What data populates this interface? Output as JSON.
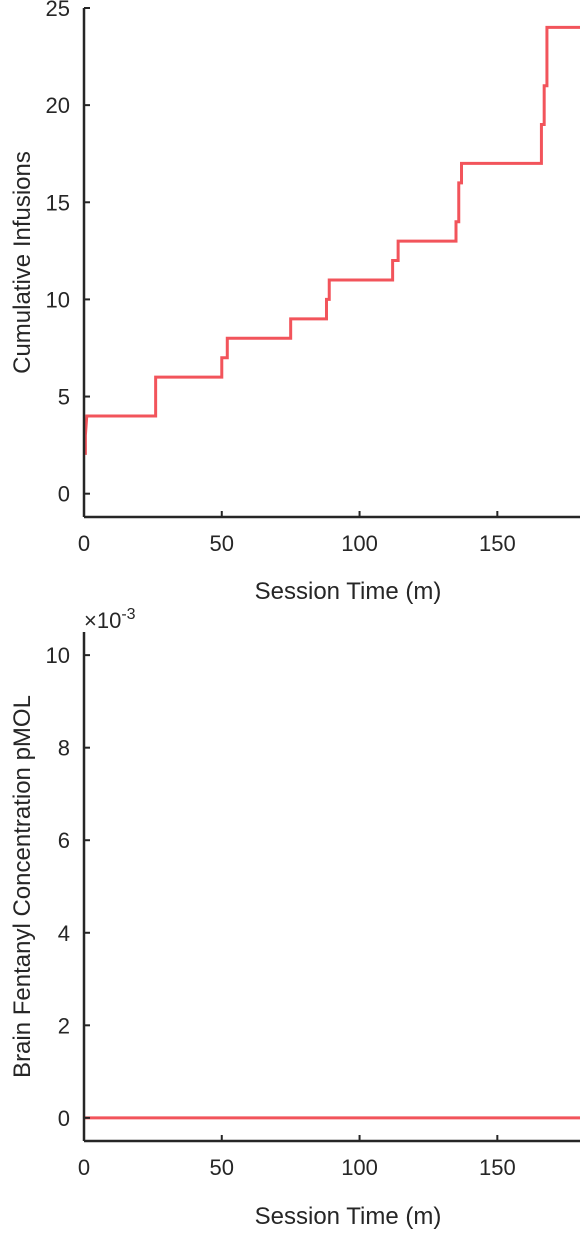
{
  "colors": {
    "series": "#f2545b",
    "axis": "#262626"
  },
  "chart_data": [
    {
      "type": "line",
      "step": true,
      "xlabel": "Session Time (m)",
      "ylabel": "Cumulative Infusions",
      "xlim": [
        0,
        180
      ],
      "ylim": [
        -1.2,
        25
      ],
      "xticks": [
        0,
        50,
        100,
        150
      ],
      "yticks": [
        0,
        5,
        10,
        15,
        20,
        25
      ],
      "grid": false,
      "series": [
        {
          "x": [
            0.5,
            0.5,
            1,
            26,
            26,
            50,
            50,
            52,
            52,
            75,
            75,
            88,
            88,
            89,
            89,
            112,
            112,
            114,
            114,
            135,
            135,
            136,
            136,
            137,
            137,
            166,
            166,
            167,
            167,
            168,
            168,
            180
          ],
          "y": [
            2,
            3,
            4,
            4,
            6,
            6,
            7,
            7,
            8,
            8,
            9,
            9,
            10,
            10,
            11,
            11,
            12,
            12,
            13,
            13,
            14,
            14,
            16,
            16,
            17,
            17,
            19,
            19,
            21,
            21,
            24,
            24
          ]
        }
      ]
    },
    {
      "type": "line",
      "xlabel": "Session Time (m)",
      "ylabel": "Brain Fentanyl Concentration pMOL",
      "exponent_label": "×10-3",
      "xlim": [
        0,
        180
      ],
      "ylim": [
        -0.0005,
        0.0105
      ],
      "xticks": [
        0,
        50,
        100,
        150
      ],
      "yticks": [
        0,
        0.002,
        0.004,
        0.006,
        0.008,
        0.01
      ],
      "ytick_labels": [
        "0",
        "2",
        "4",
        "6",
        "8",
        "10"
      ],
      "grid": false,
      "series": [
        {
          "x": [
            0,
            180
          ],
          "y": [
            0,
            0
          ]
        }
      ]
    }
  ]
}
